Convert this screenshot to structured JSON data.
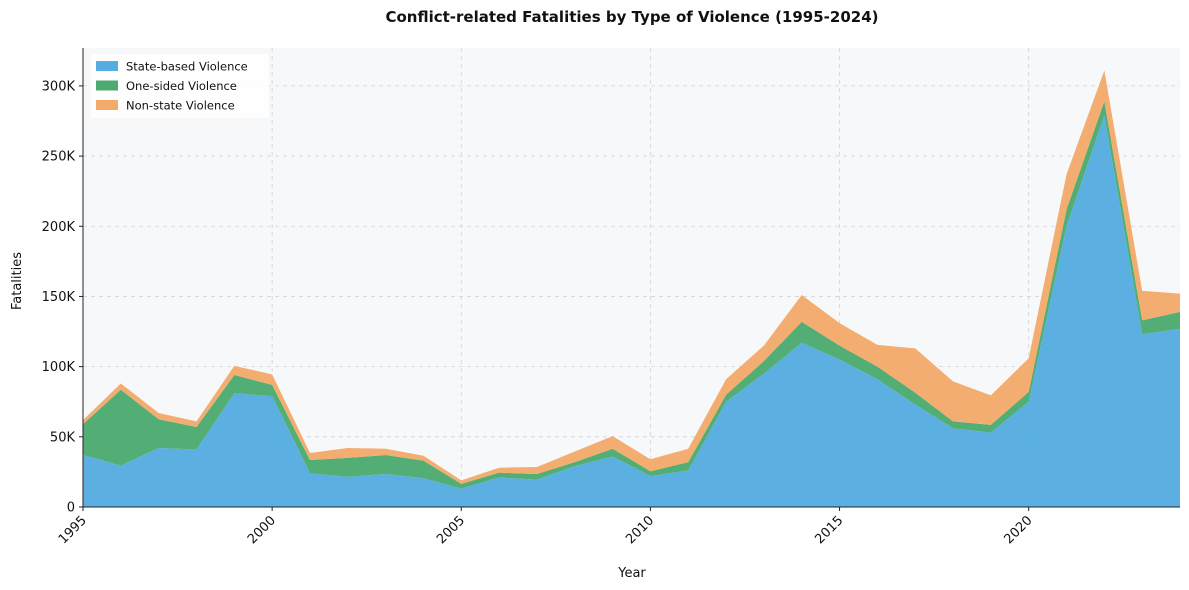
{
  "chart_data": {
    "type": "area",
    "stacked": true,
    "title": "Conflict-related Fatalities by Type of Violence (1995-2024)",
    "xlabel": "Year",
    "ylabel": "Fatalities",
    "xlim": [
      1995,
      2024
    ],
    "ylim": [
      0,
      327000
    ],
    "xticks": [
      1995,
      2000,
      2005,
      2010,
      2015,
      2020
    ],
    "yticks": [
      0,
      50000,
      100000,
      150000,
      200000,
      250000,
      300000
    ],
    "ytick_labels": [
      "0",
      "50K",
      "100K",
      "150K",
      "200K",
      "250K",
      "300K"
    ],
    "grid": true,
    "legend_position": "top-left",
    "x": [
      1995,
      1996,
      1997,
      1998,
      1999,
      2000,
      2001,
      2002,
      2003,
      2004,
      2005,
      2006,
      2007,
      2008,
      2009,
      2010,
      2011,
      2012,
      2013,
      2014,
      2015,
      2016,
      2017,
      2018,
      2019,
      2020,
      2021,
      2022,
      2023,
      2024
    ],
    "series": [
      {
        "name": "State-based Violence",
        "color": "#56ade0",
        "values": [
          37000,
          29500,
          42000,
          41000,
          81000,
          79000,
          24000,
          21500,
          23500,
          20500,
          13000,
          21000,
          19500,
          29000,
          36000,
          22000,
          26000,
          75000,
          95000,
          117000,
          105000,
          91000,
          73000,
          56000,
          53000,
          75000,
          200000,
          279000,
          123000,
          127000
        ]
      },
      {
        "name": "One-sided Violence",
        "color": "#4dab72",
        "values": [
          22000,
          54000,
          20500,
          16000,
          13000,
          8000,
          9500,
          13500,
          13500,
          12500,
          3500,
          3500,
          4000,
          3000,
          5500,
          3500,
          6000,
          5000,
          9000,
          15000,
          10000,
          9000,
          8500,
          5000,
          5500,
          7000,
          12000,
          10000,
          10000,
          12000
        ]
      },
      {
        "name": "Non-state Violence",
        "color": "#f4aa6b",
        "values": [
          3000,
          4500,
          4500,
          4000,
          6500,
          7500,
          5000,
          7000,
          4500,
          3500,
          2500,
          3500,
          5000,
          7500,
          9000,
          8500,
          9500,
          11000,
          11000,
          19000,
          16000,
          15500,
          31500,
          28500,
          21000,
          24000,
          25000,
          22000,
          21000,
          13000
        ]
      }
    ]
  }
}
